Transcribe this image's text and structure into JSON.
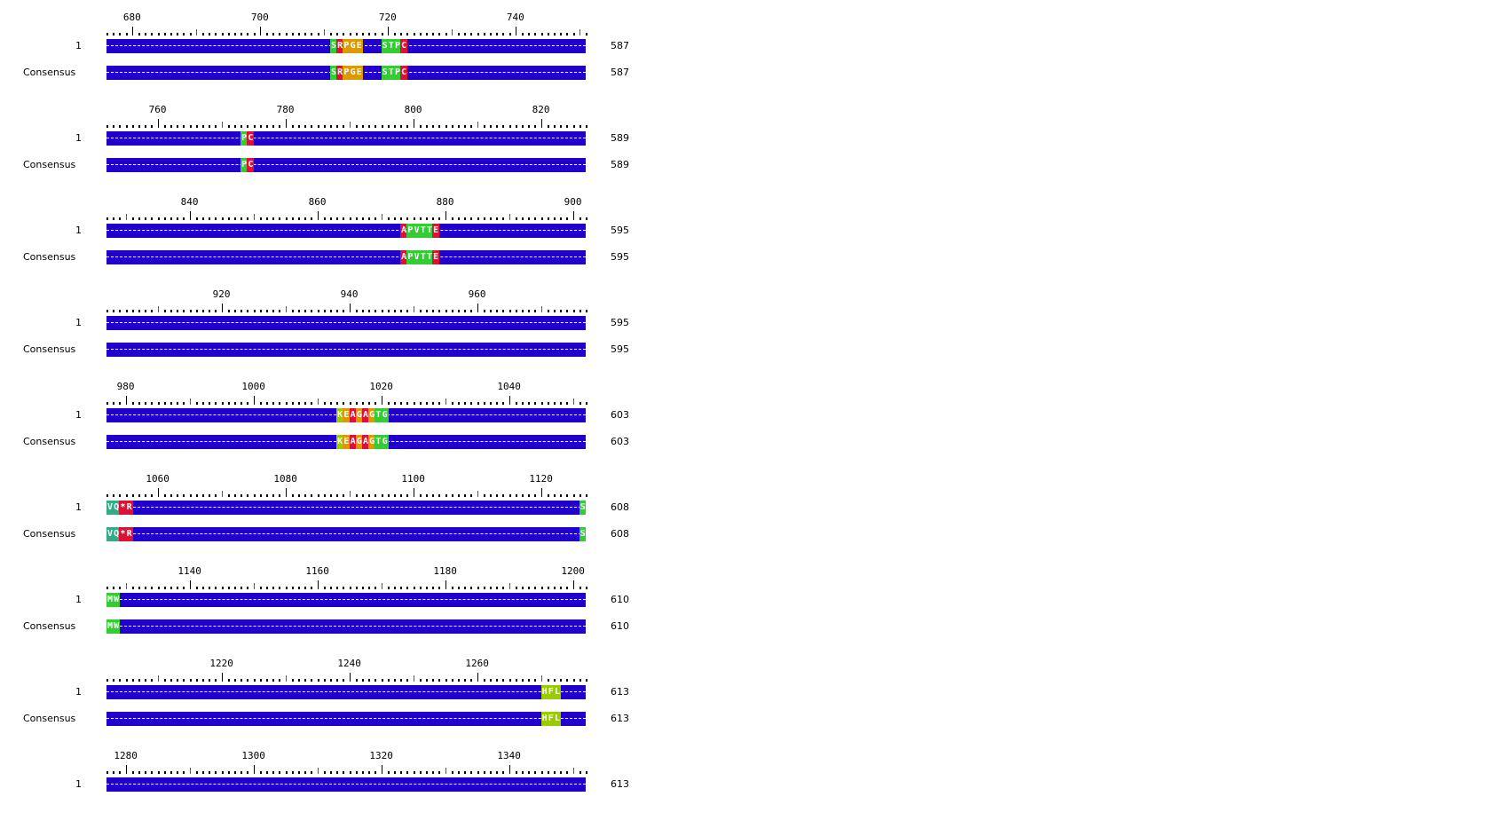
{
  "colors": {
    "gap_bar": "#2200cc",
    "green": "#33cc33",
    "red": "#dd1133",
    "orange": "#dd9900",
    "yellow_green": "#99cc00",
    "teal": "#33aa88"
  },
  "consensus_label": "Consensus",
  "blocks": [
    {
      "ticks": [
        "680",
        "700",
        "720",
        "740"
      ],
      "seq_label": "1",
      "count": "587",
      "residues": [
        {
          "col": 35,
          "aa": "S",
          "color": "#33cc33"
        },
        {
          "col": 36,
          "aa": "R",
          "color": "#dd1133"
        },
        {
          "col": 37,
          "aa": "P",
          "color": "#dd9900"
        },
        {
          "col": 38,
          "aa": "G",
          "color": "#dd9900"
        },
        {
          "col": 39,
          "aa": "E",
          "color": "#dd9900"
        },
        {
          "col": 43,
          "aa": "S",
          "color": "#33cc33"
        },
        {
          "col": 44,
          "aa": "T",
          "color": "#33cc33"
        },
        {
          "col": 45,
          "aa": "P",
          "color": "#33cc33"
        },
        {
          "col": 46,
          "aa": "C",
          "color": "#dd1133"
        }
      ]
    },
    {
      "ticks": [
        "760",
        "780",
        "800",
        "820"
      ],
      "seq_label": "1",
      "count": "589",
      "residues": [
        {
          "col": 21,
          "aa": "P",
          "color": "#33cc33"
        },
        {
          "col": 22,
          "aa": "C",
          "color": "#dd1133"
        }
      ]
    },
    {
      "ticks": [
        "840",
        "860",
        "880",
        "900"
      ],
      "seq_label": "1",
      "count": "595",
      "residues": [
        {
          "col": 46,
          "aa": "A",
          "color": "#dd1133"
        },
        {
          "col": 47,
          "aa": "P",
          "color": "#33cc33"
        },
        {
          "col": 48,
          "aa": "V",
          "color": "#33cc33"
        },
        {
          "col": 49,
          "aa": "T",
          "color": "#33cc33"
        },
        {
          "col": 50,
          "aa": "T",
          "color": "#33cc33"
        },
        {
          "col": 51,
          "aa": "E",
          "color": "#dd1133"
        }
      ]
    },
    {
      "ticks": [
        "920",
        "940",
        "960"
      ],
      "seq_label": "1",
      "count": "595",
      "residues": []
    },
    {
      "ticks": [
        "980",
        "1000",
        "1020",
        "1040"
      ],
      "seq_label": "1",
      "count": "603",
      "residues": [
        {
          "col": 36,
          "aa": "K",
          "color": "#99cc00"
        },
        {
          "col": 37,
          "aa": "E",
          "color": "#dd9900"
        },
        {
          "col": 38,
          "aa": "A",
          "color": "#dd1133"
        },
        {
          "col": 39,
          "aa": "G",
          "color": "#dd9900"
        },
        {
          "col": 40,
          "aa": "A",
          "color": "#dd1133"
        },
        {
          "col": 41,
          "aa": "G",
          "color": "#dd9900"
        },
        {
          "col": 42,
          "aa": "T",
          "color": "#33cc33"
        },
        {
          "col": 43,
          "aa": "G",
          "color": "#33cc33"
        }
      ]
    },
    {
      "ticks": [
        "1060",
        "1080",
        "1100",
        "1120"
      ],
      "seq_label": "1",
      "count": "608",
      "residues": [
        {
          "col": 0,
          "aa": "V",
          "color": "#33aa88"
        },
        {
          "col": 1,
          "aa": "Q",
          "color": "#33aa88"
        },
        {
          "col": 2,
          "aa": "*",
          "color": "#dd1133"
        },
        {
          "col": 3,
          "aa": "R",
          "color": "#dd1133"
        },
        {
          "col": 74,
          "aa": "S",
          "color": "#33cc33"
        }
      ]
    },
    {
      "ticks": [
        "1140",
        "1160",
        "1180",
        "1200"
      ],
      "seq_label": "1",
      "count": "610",
      "residues": [
        {
          "col": 0,
          "aa": "M",
          "color": "#33cc33"
        },
        {
          "col": 1,
          "aa": "W",
          "color": "#33cc33"
        }
      ]
    },
    {
      "ticks": [
        "1220",
        "1240",
        "1260"
      ],
      "seq_label": "1",
      "count": "613",
      "residues": [
        {
          "col": 68,
          "aa": "H",
          "color": "#99cc00"
        },
        {
          "col": 69,
          "aa": "F",
          "color": "#99cc00"
        },
        {
          "col": 70,
          "aa": "L",
          "color": "#99cc00"
        }
      ]
    },
    {
      "ticks": [
        "1280",
        "1300",
        "1320",
        "1340"
      ],
      "seq_label": "1",
      "count": "613",
      "residues": [],
      "partial": true
    }
  ]
}
